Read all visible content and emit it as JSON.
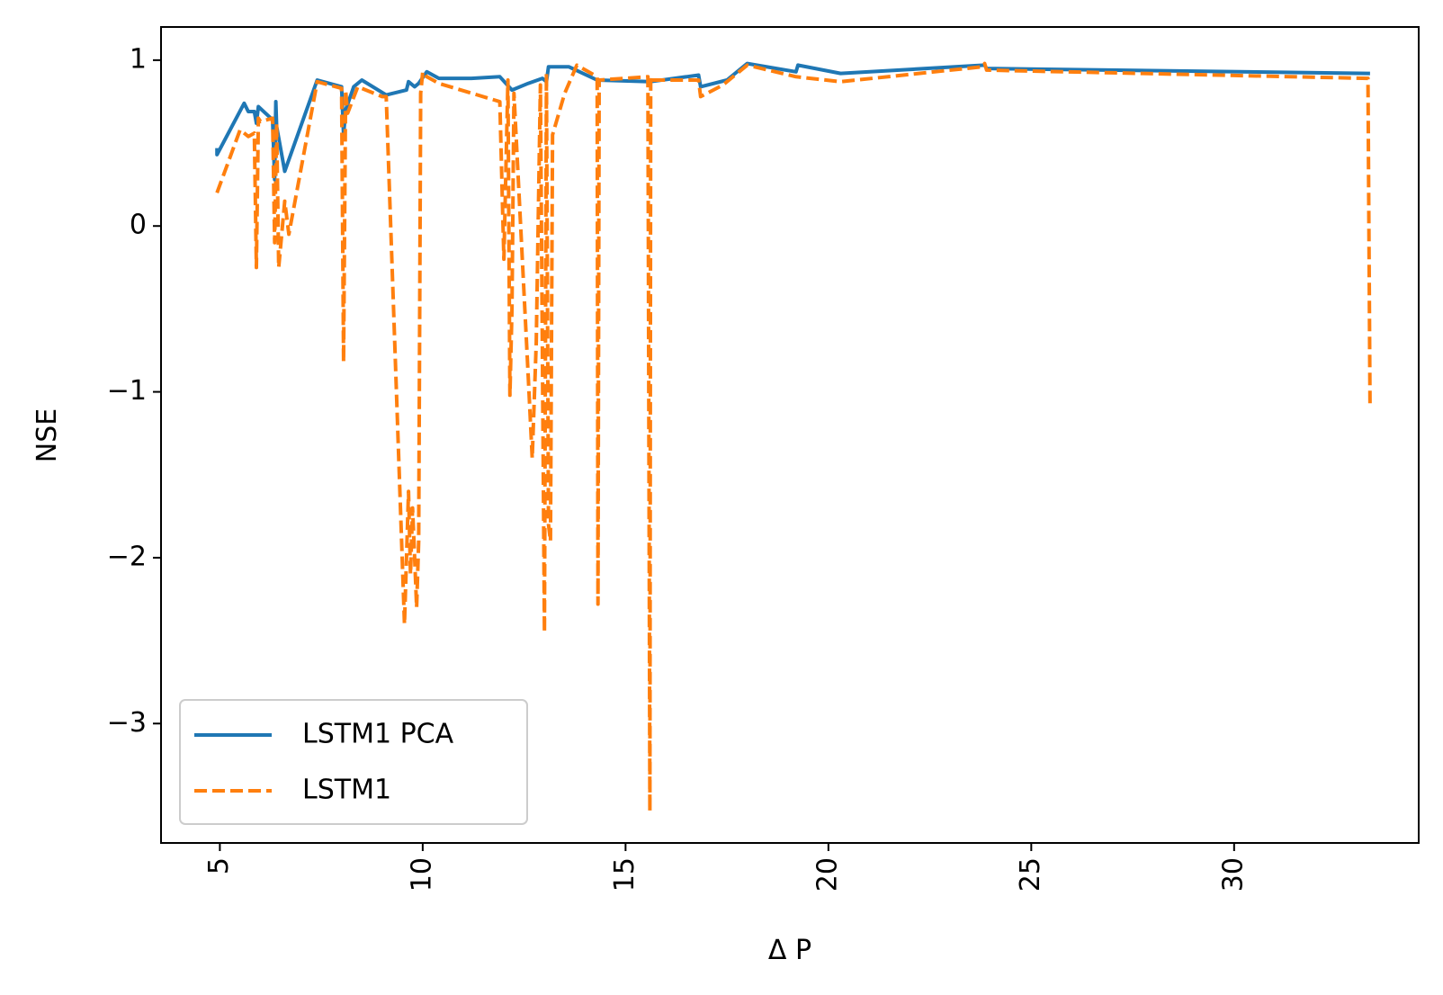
{
  "chart_data": {
    "type": "line",
    "title": "",
    "xlabel": "Δ P",
    "ylabel": "NSE",
    "xlim": [
      3.55,
      34.55
    ],
    "ylim": [
      -3.72,
      1.2
    ],
    "x_ticks": [
      5,
      10,
      15,
      20,
      25,
      30
    ],
    "x_tick_labels": [
      "5",
      "10",
      "15",
      "20",
      "25",
      "30"
    ],
    "y_ticks": [
      1,
      0,
      -1,
      -2,
      -3
    ],
    "y_tick_labels": [
      "1",
      "0",
      "−1",
      "−2",
      "−3"
    ],
    "grid": false,
    "legend_position": "lower-left",
    "series": [
      {
        "name": "LSTM1 PCA",
        "color": "#1f77b4",
        "style": "solid",
        "x": [
          4.93,
          4.93,
          5.6,
          5.7,
          5.85,
          5.9,
          5.95,
          6.3,
          6.35,
          6.38,
          6.4,
          6.6,
          7.4,
          8.0,
          8.05,
          8.1,
          8.3,
          8.5,
          9.1,
          9.6,
          9.65,
          9.8,
          9.9,
          10.1,
          10.4,
          11.2,
          11.9,
          12.2,
          12.6,
          12.95,
          13.05,
          13.1,
          13.6,
          14.3,
          15.6,
          16.8,
          16.85,
          17.5,
          18.0,
          19.2,
          19.25,
          20.3,
          23.85,
          23.9,
          33.3,
          33.35
        ],
        "y": [
          0.47,
          0.43,
          0.74,
          0.69,
          0.69,
          0.62,
          0.72,
          0.64,
          0.28,
          0.75,
          0.6,
          0.33,
          0.88,
          0.84,
          0.55,
          0.7,
          0.84,
          0.88,
          0.79,
          0.82,
          0.87,
          0.84,
          0.86,
          0.93,
          0.89,
          0.89,
          0.9,
          0.82,
          0.86,
          0.89,
          0.87,
          0.96,
          0.96,
          0.88,
          0.87,
          0.91,
          0.84,
          0.88,
          0.98,
          0.93,
          0.97,
          0.92,
          0.97,
          0.95,
          0.92,
          0.92
        ]
      },
      {
        "name": "LSTM1",
        "color": "#ff7f0e",
        "style": "dashed",
        "x": [
          4.93,
          5.5,
          5.7,
          5.85,
          5.9,
          5.95,
          6.0,
          6.3,
          6.35,
          6.4,
          6.45,
          6.6,
          6.7,
          7.4,
          8.0,
          8.05,
          8.1,
          8.15,
          8.4,
          9.0,
          9.1,
          9.55,
          9.65,
          9.7,
          9.75,
          9.8,
          9.85,
          9.9,
          9.95,
          10.0,
          10.1,
          10.4,
          11.9,
          12.0,
          12.1,
          12.15,
          12.2,
          12.25,
          12.6,
          12.7,
          12.8,
          12.9,
          13.0,
          13.05,
          13.1,
          13.15,
          13.2,
          13.5,
          13.8,
          14.3,
          14.32,
          14.35,
          15.55,
          15.6,
          15.62,
          15.65,
          16.8,
          16.85,
          17.4,
          18.0,
          19.2,
          20.3,
          23.8,
          23.85,
          23.9,
          33.3,
          33.35
        ],
        "y": [
          0.2,
          0.58,
          0.54,
          0.56,
          -0.25,
          0.65,
          0.63,
          0.65,
          -0.1,
          0.62,
          -0.25,
          0.15,
          -0.05,
          0.87,
          0.83,
          -0.82,
          0.82,
          0.68,
          0.84,
          0.78,
          0.78,
          -2.4,
          -1.6,
          -2.1,
          -1.7,
          -2.0,
          -2.3,
          -1.9,
          0.8,
          0.93,
          0.9,
          0.86,
          0.75,
          -0.2,
          0.88,
          -1.02,
          -0.5,
          0.8,
          -0.9,
          -1.4,
          -0.7,
          0.85,
          -2.45,
          0.92,
          -1.8,
          -1.9,
          0.55,
          0.8,
          0.97,
          0.9,
          -2.28,
          0.88,
          0.9,
          -3.53,
          0.9,
          0.88,
          0.88,
          0.78,
          0.85,
          0.97,
          0.9,
          0.87,
          0.96,
          0.98,
          0.94,
          0.89,
          -1.1
        ]
      }
    ]
  }
}
